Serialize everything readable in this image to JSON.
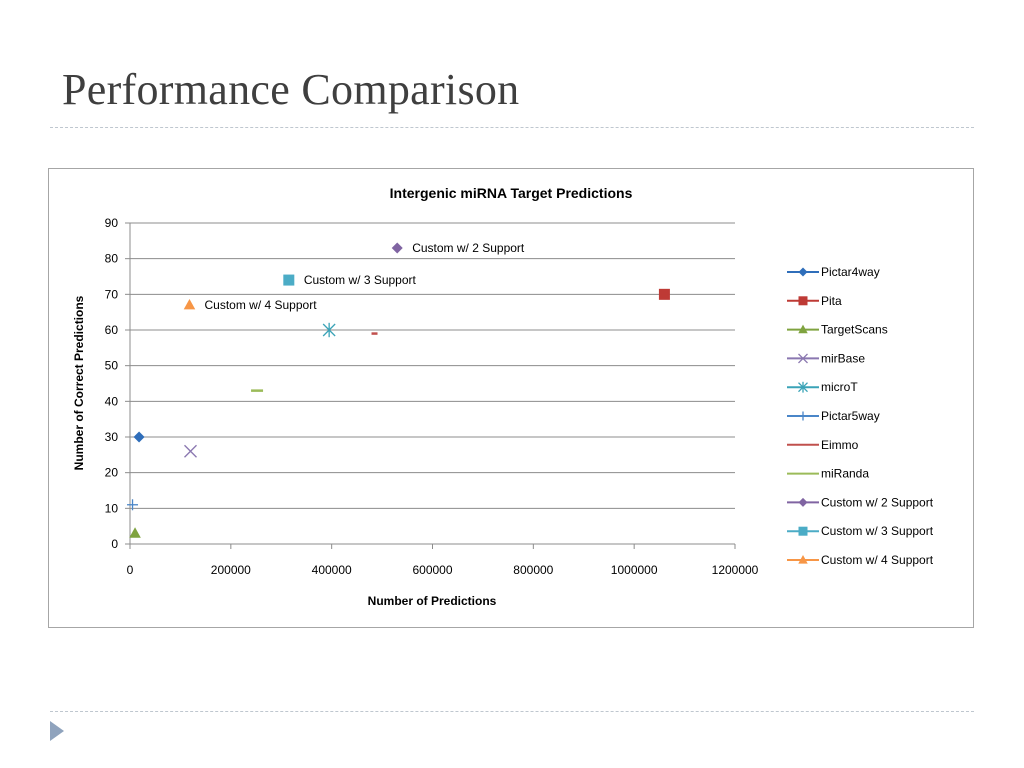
{
  "slide": {
    "title": "Performance Comparison"
  },
  "chart_data": {
    "type": "scatter",
    "title": "Intergenic miRNA Target Predictions",
    "xlabel": "Number of Predictions",
    "ylabel": "Number of Correct Predictions",
    "xlim": [
      0,
      1200000
    ],
    "ylim": [
      0,
      90
    ],
    "xticks": [
      0,
      200000,
      400000,
      600000,
      800000,
      1000000,
      1200000
    ],
    "xtick_labels": [
      "0",
      "200000",
      "400000",
      "600000",
      "800000",
      "1000000",
      "1200000"
    ],
    "yticks": [
      0,
      10,
      20,
      30,
      40,
      50,
      60,
      70,
      80,
      90
    ],
    "ytick_labels": [
      "0",
      "10",
      "20",
      "30",
      "40",
      "50",
      "60",
      "70",
      "80",
      "90"
    ],
    "grid": "horizontal",
    "legend_position": "right",
    "series": [
      {
        "name": "Pictar4way",
        "marker": "diamond",
        "color": "#2f6eba",
        "points": [
          [
            18000,
            30
          ]
        ]
      },
      {
        "name": "Pita",
        "marker": "square",
        "color": "#be3a35",
        "points": [
          [
            1060000,
            70
          ]
        ]
      },
      {
        "name": "TargetScans",
        "marker": "triangle",
        "color": "#7fa33f",
        "points": [
          [
            10000,
            3
          ]
        ]
      },
      {
        "name": "mirBase",
        "marker": "x",
        "color": "#8a77b0",
        "points": [
          [
            120000,
            26
          ]
        ]
      },
      {
        "name": "microT",
        "marker": "asterisk",
        "color": "#3aa3b7",
        "points": [
          [
            395000,
            60
          ]
        ]
      },
      {
        "name": "Pictar5way",
        "marker": "plus",
        "color": "#4a86c8",
        "points": [
          [
            5000,
            11
          ]
        ]
      },
      {
        "name": "Eimmo",
        "marker": "dash",
        "color": "#c0504d",
        "points": [
          [
            485000,
            59
          ]
        ]
      },
      {
        "name": "miRanda",
        "marker": "dash",
        "color": "#9bbb59",
        "points": [
          [
            252000,
            43
          ]
        ]
      },
      {
        "name": "Custom w/ 2 Support",
        "marker": "diamond",
        "color": "#8064a2",
        "points": [
          [
            530000,
            83
          ]
        ],
        "point_label": "Custom w/ 2 Support"
      },
      {
        "name": "Custom w/ 3 Support",
        "marker": "square",
        "color": "#4bacc6",
        "points": [
          [
            315000,
            74
          ]
        ],
        "point_label": "Custom w/ 3 Support"
      },
      {
        "name": "Custom w/ 4 Support",
        "marker": "triangle",
        "color": "#f79646",
        "points": [
          [
            118000,
            67
          ]
        ],
        "point_label": "Custom w/ 4 Support"
      }
    ]
  }
}
